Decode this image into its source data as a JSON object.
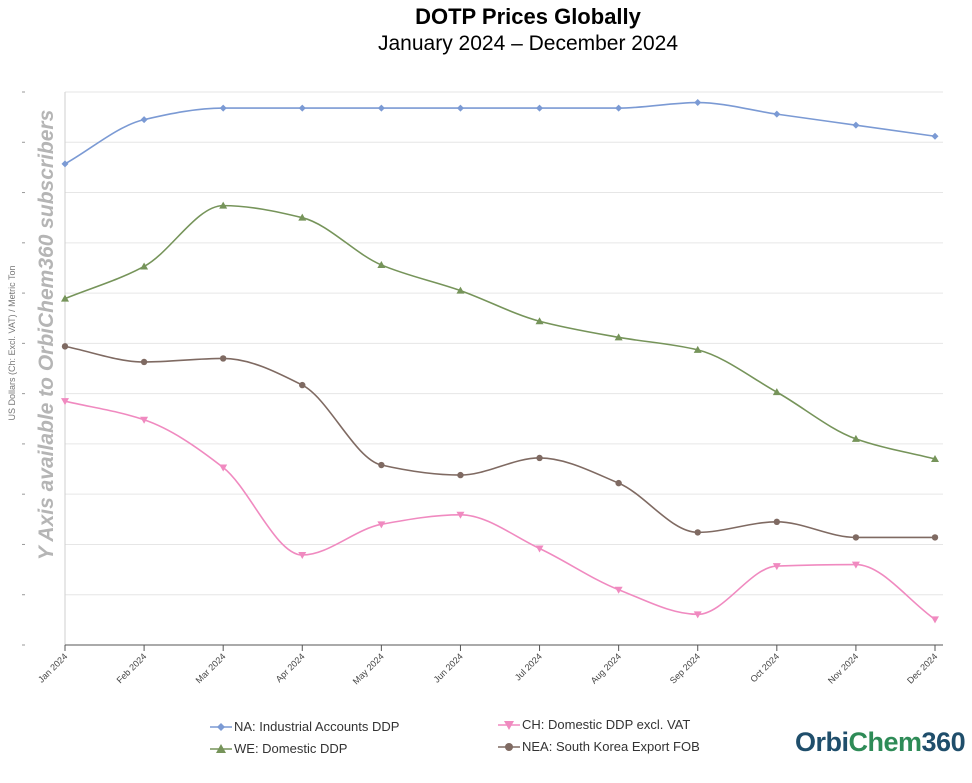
{
  "chart_data": {
    "type": "line",
    "title": "DOTP Prices Globally",
    "subtitle": "January 2024 – December 2024",
    "ylabel": "US Dollars (Ch: Excl. VAT) / Metric Ton",
    "watermark": "Y Axis available to OrbiChem360 subscribers",
    "xlabel": "",
    "ylim": [
      0,
      11
    ],
    "grid": true,
    "categories": [
      "Jan 2024",
      "Feb 2024",
      "Mar 2024",
      "Apr 2024",
      "May 2024",
      "Jun 2024",
      "Jul 2024",
      "Aug 2024",
      "Sep 2024",
      "Oct 2024",
      "Nov 2024",
      "Dec 2024"
    ],
    "series": [
      {
        "name": "NA: Industrial Accounts DDP",
        "color": "#7b9ad4",
        "marker": "diamond",
        "values": [
          9.57,
          10.45,
          10.68,
          10.68,
          10.68,
          10.68,
          10.68,
          10.68,
          10.79,
          10.56,
          10.34,
          10.12
        ]
      },
      {
        "name": "WE: Domestic DDP",
        "color": "#76945a",
        "marker": "triangle",
        "values": [
          6.89,
          7.53,
          8.74,
          8.5,
          7.56,
          7.05,
          6.44,
          6.12,
          5.87,
          5.03,
          4.1,
          3.7
        ]
      },
      {
        "name": "CH: Domestic DDP excl. VAT",
        "color": "#f08ac0",
        "marker": "triangle-down",
        "values": [
          4.85,
          4.48,
          3.53,
          1.79,
          2.4,
          2.59,
          1.92,
          1.1,
          0.61,
          1.57,
          1.6,
          0.51
        ]
      },
      {
        "name": "NEA: South Korea Export FOB",
        "color": "#7f6a62",
        "marker": "circle",
        "values": [
          5.94,
          5.63,
          5.7,
          5.17,
          3.58,
          3.38,
          3.72,
          3.22,
          2.24,
          2.45,
          2.14,
          2.14
        ]
      }
    ]
  },
  "legend_items": [
    {
      "label": "NA: Industrial Accounts  DDP"
    },
    {
      "label": "WE: Domestic  DDP"
    },
    {
      "label": "CH: Domestic DDP excl. VAT"
    },
    {
      "label": "NEA: South Korea Export FOB"
    }
  ],
  "logo": {
    "part1": "Orbi",
    "part2": "Chem",
    "part3": "360"
  }
}
